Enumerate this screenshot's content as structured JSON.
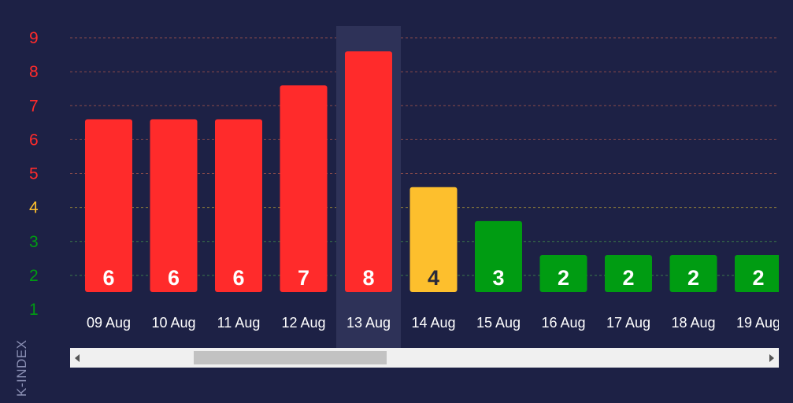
{
  "chart_data": {
    "type": "bar",
    "categories": [
      "09 Aug",
      "10 Aug",
      "11 Aug",
      "12 Aug",
      "13 Aug",
      "14 Aug",
      "15 Aug",
      "16 Aug",
      "17 Aug",
      "18 Aug",
      "19 Aug"
    ],
    "values": [
      6,
      6,
      6,
      7,
      8,
      4,
      3,
      2,
      2,
      2,
      2
    ],
    "ylabel": "K-INDEX",
    "yticks": [
      1,
      2,
      3,
      4,
      5,
      6,
      7,
      8,
      9
    ],
    "ylim": [
      1,
      9
    ],
    "grid": true,
    "highlighted_category": "13 Aug",
    "colors": {
      "storm": "#ff2b2b",
      "active": "#fdbf2d",
      "quiet": "#009c12",
      "label_on_active": "#2a2a3a",
      "label_default": "#ffffff",
      "tick_storm": "#ff2b2b",
      "tick_active": "#fdbf2d",
      "tick_quiet": "#009c12",
      "xtick": "#ffffff",
      "grid": "#8a4a4a",
      "grid_active": "#8a7a3a",
      "highlight": "#2e3258"
    }
  }
}
